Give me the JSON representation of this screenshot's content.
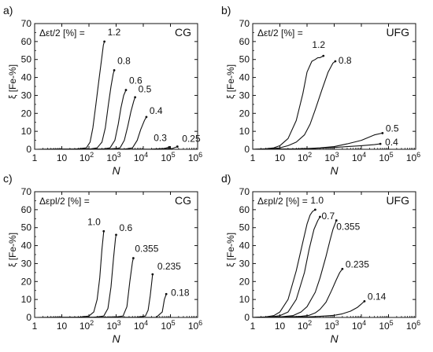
{
  "chart_data": [
    {
      "type": "line",
      "panel_letter": "a)",
      "material": "CG",
      "param_label": "Δεt/2 [%] =",
      "xlabel": "N",
      "ylabel": "ξ [Fe-%]",
      "x_log": true,
      "xlim": [
        1,
        1000000
      ],
      "ylim": [
        0,
        70
      ],
      "x_ticks": [
        {
          "v": 1,
          "label": "1"
        },
        {
          "v": 10,
          "label": "10"
        },
        {
          "v": 100,
          "base": "10",
          "exp": "2"
        },
        {
          "v": 1000,
          "base": "10",
          "exp": "3"
        },
        {
          "v": 10000,
          "base": "10",
          "exp": "4"
        },
        {
          "v": 100000,
          "base": "10",
          "exp": "5"
        },
        {
          "v": 1000000,
          "base": "10",
          "exp": "6"
        }
      ],
      "y_ticks": [
        0,
        10,
        20,
        30,
        40,
        50,
        60,
        70
      ],
      "series": [
        {
          "name": "1.2",
          "label": "1.2",
          "x": [
            1,
            30,
            80,
            110,
            140,
            180,
            230,
            290,
            340,
            370
          ],
          "y": [
            0,
            0.1,
            0.8,
            4,
            12,
            25,
            38,
            50,
            58,
            60
          ]
        },
        {
          "name": "0.8",
          "label": "0.8",
          "x": [
            1,
            100,
            200,
            300,
            400,
            520,
            650,
            780,
            850
          ],
          "y": [
            0,
            0.1,
            0.8,
            4,
            12,
            25,
            35,
            42,
            44
          ]
        },
        {
          "name": "0.6",
          "label": "0.6",
          "x": [
            1,
            300,
            600,
            900,
            1200,
            1500,
            1900,
            2300
          ],
          "y": [
            0,
            0.1,
            0.8,
            5,
            14,
            23,
            30,
            33
          ]
        },
        {
          "name": "0.5",
          "label": "0.5",
          "x": [
            1,
            700,
            1400,
            2000,
            2700,
            3500,
            4500,
            5000
          ],
          "y": [
            0,
            0.1,
            0.8,
            5,
            13,
            21,
            27,
            29
          ]
        },
        {
          "name": "0.4",
          "label": "0.4",
          "x": [
            1,
            2000,
            4000,
            6000,
            8000,
            11000,
            13000
          ],
          "y": [
            0,
            0.1,
            0.8,
            5,
            11,
            16,
            18
          ]
        },
        {
          "name": "0.3",
          "label": "0.3",
          "x": [
            1,
            20000,
            60000,
            90000
          ],
          "y": [
            0,
            0.1,
            0.5,
            1.2
          ]
        },
        {
          "name": "0.25",
          "label": "0.25",
          "x": [
            1,
            50000,
            120000,
            180000
          ],
          "y": [
            0,
            0.1,
            0.5,
            1.5
          ]
        }
      ]
    },
    {
      "type": "line",
      "panel_letter": "b)",
      "material": "UFG",
      "param_label": "Δεt/2 [%] =",
      "xlabel": "N",
      "ylabel": "ξ [Fe-%]",
      "x_log": true,
      "xlim": [
        1,
        1000000
      ],
      "ylim": [
        0,
        70
      ],
      "x_ticks": [
        {
          "v": 1,
          "label": "1"
        },
        {
          "v": 10,
          "label": "10"
        },
        {
          "v": 100,
          "base": "10",
          "exp": "2"
        },
        {
          "v": 1000,
          "base": "10",
          "exp": "3"
        },
        {
          "v": 10000,
          "base": "10",
          "exp": "4"
        },
        {
          "v": 100000,
          "base": "10",
          "exp": "5"
        },
        {
          "v": 1000000,
          "base": "10",
          "exp": "6"
        }
      ],
      "y_ticks": [
        0,
        10,
        20,
        30,
        40,
        50,
        60,
        70
      ],
      "series": [
        {
          "name": "1.2",
          "label": "1.2",
          "x": [
            1,
            3,
            6,
            10,
            20,
            40,
            70,
            100,
            150,
            200,
            250,
            300,
            400
          ],
          "y": [
            0,
            0.3,
            0.8,
            2,
            6,
            16,
            31,
            43,
            49,
            50,
            51,
            51,
            52
          ]
        },
        {
          "name": "0.8",
          "label": "0.8",
          "x": [
            1,
            5,
            10,
            20,
            40,
            80,
            130,
            200,
            350,
            600,
            900,
            1100
          ],
          "y": [
            0,
            0.3,
            0.8,
            2,
            4,
            8,
            14,
            22,
            33,
            43,
            48,
            49
          ]
        },
        {
          "name": "0.5",
          "label": "0.5",
          "x": [
            1,
            30,
            100,
            300,
            1000,
            3000,
            10000,
            30000,
            60000
          ],
          "y": [
            0,
            0.2,
            0.4,
            0.8,
            1.5,
            3,
            5,
            8,
            9
          ]
        },
        {
          "name": "0.4",
          "label": "0.4",
          "x": [
            1,
            30,
            100,
            300,
            1000,
            3000,
            10000,
            30000,
            50000
          ],
          "y": [
            0,
            0.2,
            0.3,
            0.6,
            1,
            1.5,
            2,
            2.6,
            3
          ]
        }
      ]
    },
    {
      "type": "line",
      "panel_letter": "c)",
      "material": "CG",
      "param_label": "Δεpl/2 [%] =",
      "xlabel": "N",
      "ylabel": "ξ [Fe-%]",
      "x_log": true,
      "xlim": [
        1,
        1000000
      ],
      "ylim": [
        0,
        70
      ],
      "x_ticks": [
        {
          "v": 1,
          "label": "1"
        },
        {
          "v": 10,
          "label": "10"
        },
        {
          "v": 100,
          "base": "10",
          "exp": "2"
        },
        {
          "v": 1000,
          "base": "10",
          "exp": "3"
        },
        {
          "v": 10000,
          "base": "10",
          "exp": "4"
        },
        {
          "v": 100000,
          "base": "10",
          "exp": "5"
        },
        {
          "v": 1000000,
          "base": "10",
          "exp": "6"
        }
      ],
      "y_ticks": [
        0,
        10,
        20,
        30,
        40,
        50,
        60,
        70
      ],
      "series": [
        {
          "name": "1.0",
          "label": "1.0",
          "x": [
            1,
            40,
            100,
            150,
            200,
            250,
            300,
            350
          ],
          "y": [
            0,
            0.1,
            0.8,
            3,
            10,
            22,
            38,
            48
          ]
        },
        {
          "name": "0.6",
          "label": "0.6",
          "x": [
            1,
            150,
            350,
            500,
            650,
            800,
            950,
            1000
          ],
          "y": [
            0,
            0.1,
            0.8,
            5,
            17,
            33,
            44,
            46
          ]
        },
        {
          "name": "0.355",
          "label": "0.355",
          "x": [
            1,
            800,
            1800,
            2500,
            3200,
            4000,
            4300
          ],
          "y": [
            0,
            0.1,
            0.8,
            6,
            20,
            31,
            33
          ]
        },
        {
          "name": "0.235",
          "label": "0.235",
          "x": [
            1,
            6000,
            12000,
            15000,
            18000,
            21000,
            22000
          ],
          "y": [
            0,
            0.1,
            0.8,
            4,
            12,
            21,
            24
          ]
        },
        {
          "name": "0.18",
          "label": "0.18",
          "x": [
            1,
            30000,
            50000,
            60000,
            70000
          ],
          "y": [
            0,
            0.1,
            3,
            10,
            13
          ]
        }
      ]
    },
    {
      "type": "line",
      "panel_letter": "d)",
      "material": "UFG",
      "param_label": "Δεpl/2 [%] =",
      "xlabel": "N",
      "ylabel": "ξ [Fe-%]",
      "x_log": true,
      "xlim": [
        1,
        1000000
      ],
      "ylim": [
        0,
        70
      ],
      "x_ticks": [
        {
          "v": 1,
          "label": "1"
        },
        {
          "v": 10,
          "label": "10"
        },
        {
          "v": 100,
          "base": "10",
          "exp": "2"
        },
        {
          "v": 1000,
          "base": "10",
          "exp": "3"
        },
        {
          "v": 10000,
          "base": "10",
          "exp": "4"
        },
        {
          "v": 100000,
          "base": "10",
          "exp": "5"
        },
        {
          "v": 1000000,
          "base": "10",
          "exp": "6"
        }
      ],
      "y_ticks": [
        0,
        10,
        20,
        30,
        40,
        50,
        60,
        70
      ],
      "series": [
        {
          "name": "1.0",
          "label": "1.0",
          "x": [
            1,
            3,
            6,
            10,
            20,
            40,
            70,
            100,
            130,
            160,
            200
          ],
          "y": [
            0,
            0.3,
            1,
            3,
            10,
            26,
            42,
            52,
            57,
            59,
            60
          ]
        },
        {
          "name": "0.7",
          "label": "0.7",
          "x": [
            1,
            5,
            10,
            20,
            40,
            80,
            120,
            180,
            250,
            300
          ],
          "y": [
            0,
            0.3,
            1,
            3,
            10,
            25,
            38,
            49,
            54,
            56
          ]
        },
        {
          "name": "0.355",
          "label": "0.355",
          "x": [
            1,
            10,
            30,
            60,
            100,
            200,
            300,
            500,
            700,
            900,
            1200
          ],
          "y": [
            0,
            0.3,
            1,
            3,
            6,
            14,
            22,
            34,
            43,
            49,
            54
          ]
        },
        {
          "name": "0.235",
          "label": "0.235",
          "x": [
            1,
            20,
            60,
            120,
            200,
            300,
            500,
            800,
            1200,
            1600,
            2000
          ],
          "y": [
            0,
            0.3,
            0.6,
            1.2,
            2.5,
            4.5,
            8.5,
            15,
            21,
            25,
            27
          ]
        },
        {
          "name": "0.14",
          "label": "0.14",
          "x": [
            1,
            100,
            300,
            1000,
            2000,
            4000,
            7000,
            10000,
            13000
          ],
          "y": [
            0,
            0.3,
            0.6,
            1.2,
            2,
            3.5,
            5.5,
            7.5,
            9
          ]
        }
      ]
    }
  ]
}
